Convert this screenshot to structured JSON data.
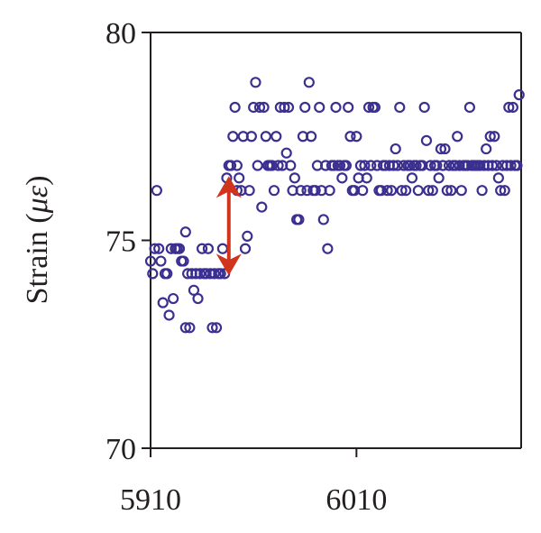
{
  "chart_data": {
    "type": "scatter",
    "title": "",
    "xlabel": "",
    "ylabel": "Strain (με)",
    "ylabel_parts": {
      "prefix": "Strain (",
      "symbol": "με",
      "suffix": ")"
    },
    "xlim": [
      5910,
      6090
    ],
    "ylim": [
      70,
      80
    ],
    "xticks": [
      5910,
      6010
    ],
    "yticks": [
      70,
      75,
      80
    ],
    "grid": false,
    "legend": "none",
    "colors": {
      "marker": "#3b2f8f",
      "annotation": "#d0341c",
      "axis": "#231f20"
    },
    "annotation": {
      "type": "double-arrow",
      "x": 5948,
      "y_from": 74.2,
      "y_to": 76.5
    },
    "points": [
      [
        5910,
        74.5
      ],
      [
        5911,
        74.2
      ],
      [
        5912,
        74.8
      ],
      [
        5913,
        76.2
      ],
      [
        5914,
        74.8
      ],
      [
        5915,
        74.5
      ],
      [
        5916,
        73.5
      ],
      [
        5917,
        74.2
      ],
      [
        5918,
        74.2
      ],
      [
        5919,
        73.2
      ],
      [
        5920,
        74.8
      ],
      [
        5921,
        73.6
      ],
      [
        5922,
        74.8
      ],
      [
        5923,
        74.8
      ],
      [
        5924,
        74.8
      ],
      [
        5925,
        74.5
      ],
      [
        5926,
        74.5
      ],
      [
        5927,
        75.2
      ],
      [
        5927,
        72.9
      ],
      [
        5928,
        74.2
      ],
      [
        5929,
        72.9
      ],
      [
        5930,
        74.2
      ],
      [
        5931,
        73.8
      ],
      [
        5932,
        74.2
      ],
      [
        5933,
        73.6
      ],
      [
        5934,
        74.2
      ],
      [
        5935,
        74.8
      ],
      [
        5936,
        74.2
      ],
      [
        5937,
        74.2
      ],
      [
        5938,
        74.8
      ],
      [
        5939,
        74.2
      ],
      [
        5940,
        72.9
      ],
      [
        5941,
        74.2
      ],
      [
        5942,
        72.9
      ],
      [
        5943,
        74.2
      ],
      [
        5944,
        74.2
      ],
      [
        5945,
        74.8
      ],
      [
        5946,
        74.2
      ],
      [
        5947,
        76.5
      ],
      [
        5948,
        76.8
      ],
      [
        5949,
        76.8
      ],
      [
        5950,
        77.5
      ],
      [
        5951,
        78.2
      ],
      [
        5952,
        76.8
      ],
      [
        5952,
        76.2
      ],
      [
        5953,
        76.5
      ],
      [
        5954,
        76.2
      ],
      [
        5955,
        77.5
      ],
      [
        5956,
        74.8
      ],
      [
        5957,
        75.1
      ],
      [
        5958,
        76.2
      ],
      [
        5959,
        77.5
      ],
      [
        5960,
        78.2
      ],
      [
        5961,
        78.8
      ],
      [
        5962,
        76.8
      ],
      [
        5963,
        78.2
      ],
      [
        5964,
        75.8
      ],
      [
        5965,
        78.2
      ],
      [
        5966,
        77.5
      ],
      [
        5967,
        76.8
      ],
      [
        5968,
        76.8
      ],
      [
        5969,
        76.8
      ],
      [
        5970,
        76.2
      ],
      [
        5971,
        77.5
      ],
      [
        5972,
        76.8
      ],
      [
        5973,
        78.2
      ],
      [
        5974,
        76.8
      ],
      [
        5975,
        78.2
      ],
      [
        5976,
        77.1
      ],
      [
        5977,
        78.2
      ],
      [
        5978,
        76.8
      ],
      [
        5979,
        76.2
      ],
      [
        5980,
        76.5
      ],
      [
        5981,
        75.5
      ],
      [
        5982,
        75.5
      ],
      [
        5983,
        76.2
      ],
      [
        5984,
        77.5
      ],
      [
        5985,
        78.2
      ],
      [
        5986,
        76.2
      ],
      [
        5987,
        78.8
      ],
      [
        5988,
        77.5
      ],
      [
        5989,
        76.2
      ],
      [
        5990,
        76.2
      ],
      [
        5991,
        76.8
      ],
      [
        5992,
        78.2
      ],
      [
        5993,
        76.2
      ],
      [
        5994,
        75.5
      ],
      [
        5995,
        76.8
      ],
      [
        5996,
        74.8
      ],
      [
        5997,
        76.2
      ],
      [
        5998,
        76.8
      ],
      [
        5999,
        76.8
      ],
      [
        6000,
        78.2
      ],
      [
        6001,
        76.8
      ],
      [
        6002,
        76.8
      ],
      [
        6003,
        76.5
      ],
      [
        6004,
        76.8
      ],
      [
        6005,
        76.8
      ],
      [
        6006,
        78.2
      ],
      [
        6007,
        77.5
      ],
      [
        6008,
        76.2
      ],
      [
        6009,
        76.2
      ],
      [
        6010,
        77.5
      ],
      [
        6011,
        76.5
      ],
      [
        6012,
        76.8
      ],
      [
        6013,
        76.2
      ],
      [
        6014,
        76.8
      ],
      [
        6015,
        76.5
      ],
      [
        6016,
        78.2
      ],
      [
        6017,
        76.8
      ],
      [
        6018,
        78.2
      ],
      [
        6019,
        78.2
      ],
      [
        6020,
        76.8
      ],
      [
        6021,
        76.2
      ],
      [
        6022,
        76.2
      ],
      [
        6023,
        76.8
      ],
      [
        6024,
        76.8
      ],
      [
        6025,
        76.2
      ],
      [
        6026,
        76.8
      ],
      [
        6027,
        76.2
      ],
      [
        6028,
        76.8
      ],
      [
        6029,
        77.2
      ],
      [
        6030,
        76.8
      ],
      [
        6031,
        78.2
      ],
      [
        6032,
        76.2
      ],
      [
        6033,
        76.8
      ],
      [
        6034,
        76.2
      ],
      [
        6035,
        76.8
      ],
      [
        6036,
        76.8
      ],
      [
        6037,
        76.5
      ],
      [
        6038,
        76.8
      ],
      [
        6039,
        76.8
      ],
      [
        6040,
        76.2
      ],
      [
        6041,
        76.8
      ],
      [
        6042,
        76.8
      ],
      [
        6043,
        78.2
      ],
      [
        6044,
        77.4
      ],
      [
        6045,
        76.2
      ],
      [
        6046,
        76.8
      ],
      [
        6047,
        76.2
      ],
      [
        6048,
        76.8
      ],
      [
        6049,
        76.8
      ],
      [
        6050,
        76.5
      ],
      [
        6051,
        77.2
      ],
      [
        6052,
        76.8
      ],
      [
        6053,
        77.2
      ],
      [
        6054,
        76.2
      ],
      [
        6055,
        76.8
      ],
      [
        6056,
        76.2
      ],
      [
        6057,
        76.8
      ],
      [
        6058,
        76.8
      ],
      [
        6059,
        77.5
      ],
      [
        6060,
        76.8
      ],
      [
        6061,
        76.2
      ],
      [
        6062,
        76.8
      ],
      [
        6063,
        76.8
      ],
      [
        6064,
        76.8
      ],
      [
        6065,
        78.2
      ],
      [
        6066,
        76.8
      ],
      [
        6067,
        76.8
      ],
      [
        6068,
        76.8
      ],
      [
        6069,
        76.8
      ],
      [
        6070,
        76.8
      ],
      [
        6071,
        76.2
      ],
      [
        6072,
        76.8
      ],
      [
        6073,
        77.2
      ],
      [
        6074,
        76.8
      ],
      [
        6075,
        77.5
      ],
      [
        6076,
        76.8
      ],
      [
        6077,
        77.5
      ],
      [
        6078,
        76.8
      ],
      [
        6079,
        76.5
      ],
      [
        6080,
        76.2
      ],
      [
        6081,
        76.8
      ],
      [
        6082,
        76.2
      ],
      [
        6083,
        76.8
      ],
      [
        6084,
        78.2
      ],
      [
        6085,
        76.8
      ],
      [
        6086,
        78.2
      ],
      [
        6087,
        76.8
      ],
      [
        6088,
        76.8
      ],
      [
        6089,
        78.5
      ]
    ]
  }
}
